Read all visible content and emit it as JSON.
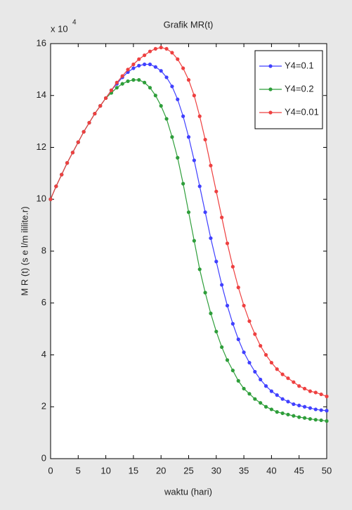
{
  "chart_data": {
    "type": "line",
    "title": "Grafik MR(t)",
    "x_label": "waktu (hari)",
    "y_label": "M R (t) (s e l/m ililite.r)",
    "y_multiplier": {
      "base": "x 10",
      "power": "4"
    },
    "x": [
      0,
      1,
      2,
      3,
      4,
      5,
      6,
      7,
      8,
      9,
      10,
      11,
      12,
      13,
      14,
      15,
      16,
      17,
      18,
      19,
      20,
      21,
      22,
      23,
      24,
      25,
      26,
      27,
      28,
      29,
      30,
      31,
      32,
      33,
      34,
      35,
      36,
      37,
      38,
      39,
      40,
      41,
      42,
      43,
      44,
      45,
      46,
      47,
      48,
      49,
      50
    ],
    "series": [
      {
        "name": "Y4=0.1",
        "color": "#4040ff",
        "values": [
          10,
          10.5,
          10.95,
          11.4,
          11.8,
          12.2,
          12.6,
          12.95,
          13.3,
          13.6,
          13.9,
          14.2,
          14.45,
          14.7,
          14.9,
          15.05,
          15.15,
          15.2,
          15.2,
          15.1,
          14.95,
          14.7,
          14.35,
          13.85,
          13.2,
          12.4,
          11.5,
          10.5,
          9.5,
          8.5,
          7.6,
          6.7,
          5.9,
          5.2,
          4.6,
          4.1,
          3.7,
          3.35,
          3.05,
          2.8,
          2.6,
          2.45,
          2.3,
          2.2,
          2.1,
          2.05,
          2.0,
          1.95,
          1.9,
          1.87,
          1.85
        ]
      },
      {
        "name": "Y4=0.2",
        "color": "#2e9e3a",
        "values": [
          10,
          10.5,
          10.95,
          11.4,
          11.8,
          12.2,
          12.6,
          12.95,
          13.3,
          13.6,
          13.9,
          14.1,
          14.3,
          14.45,
          14.55,
          14.6,
          14.6,
          14.5,
          14.3,
          14,
          13.6,
          13.1,
          12.4,
          11.6,
          10.6,
          9.5,
          8.4,
          7.3,
          6.4,
          5.6,
          4.9,
          4.3,
          3.8,
          3.4,
          3.0,
          2.7,
          2.5,
          2.3,
          2.15,
          2.0,
          1.9,
          1.8,
          1.75,
          1.7,
          1.65,
          1.6,
          1.57,
          1.53,
          1.5,
          1.48,
          1.45
        ]
      },
      {
        "name": "Y4=0.01",
        "color": "#ee4040",
        "values": [
          10,
          10.5,
          10.95,
          11.4,
          11.8,
          12.2,
          12.6,
          12.95,
          13.3,
          13.6,
          13.9,
          14.2,
          14.5,
          14.75,
          15.0,
          15.2,
          15.4,
          15.55,
          15.7,
          15.8,
          15.85,
          15.8,
          15.65,
          15.4,
          15.05,
          14.6,
          14.0,
          13.2,
          12.3,
          11.3,
          10.3,
          9.3,
          8.3,
          7.4,
          6.6,
          5.9,
          5.3,
          4.8,
          4.35,
          4.0,
          3.7,
          3.45,
          3.25,
          3.1,
          2.95,
          2.8,
          2.7,
          2.6,
          2.55,
          2.48,
          2.4
        ]
      }
    ],
    "xlim": [
      0,
      50
    ],
    "xticks": [
      0,
      5,
      10,
      15,
      20,
      25,
      30,
      35,
      40,
      45,
      50
    ],
    "ylim": [
      0,
      16
    ],
    "yticks": [
      0,
      2,
      4,
      6,
      8,
      10,
      12,
      14,
      16
    ],
    "legend": "upper right",
    "grid": false
  }
}
